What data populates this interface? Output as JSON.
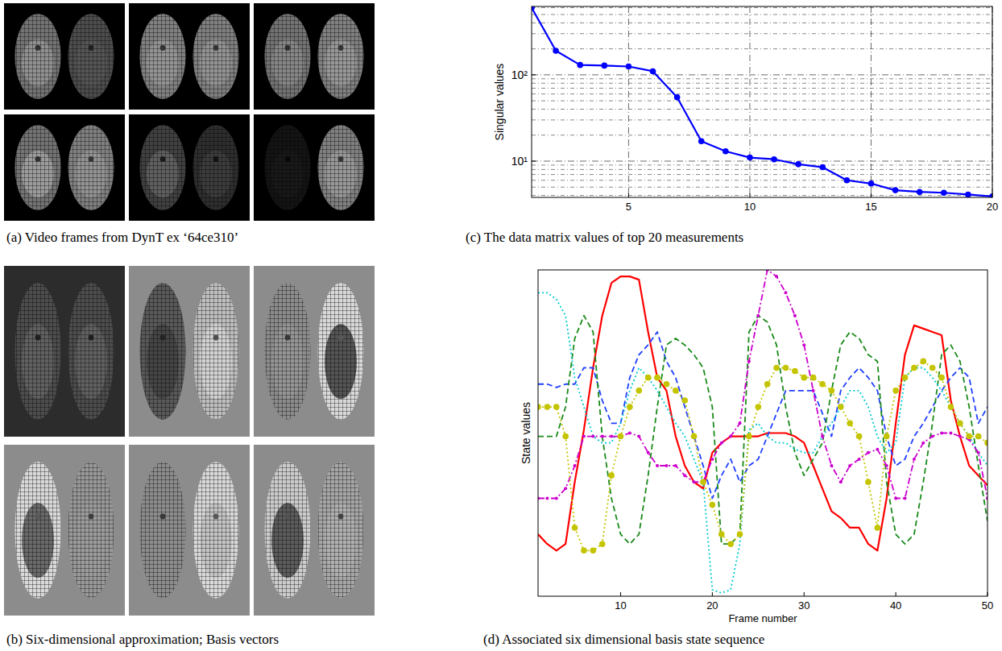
{
  "image_panels": [
    {
      "caption": "(a) Video frames from DynT ex ‘64ce310’"
    },
    {
      "caption": "(b) Six-dimensional approximation; Basis vectors"
    }
  ],
  "chart_data": [
    {
      "type": "line",
      "title": "(c) The data matrix values of top 20 measurements",
      "y_label": "Singular values",
      "log": "y",
      "grid": true,
      "color": "#0000ff",
      "marker": "circle",
      "line_style": "solid",
      "x": [
        1,
        2,
        3,
        4,
        5,
        6,
        7,
        8,
        9,
        10,
        11,
        12,
        13,
        14,
        15,
        16,
        17,
        18,
        19,
        20
      ],
      "values": [
        600,
        190,
        130,
        128,
        125,
        110,
        55,
        17,
        13,
        11,
        10.5,
        9.2,
        8.5,
        6,
        5.5,
        4.6,
        4.4,
        4.3,
        4.1,
        3.9
      ],
      "xlim": [
        1,
        20
      ],
      "xticks": [
        5,
        10,
        15,
        20
      ],
      "ylim": [
        3.8,
        620
      ],
      "yticks": [
        {
          "value": 10,
          "label": "10¹"
        },
        {
          "value": 100,
          "label": "10²"
        }
      ]
    },
    {
      "type": "line",
      "title": "(d) Associated six dimensional basis state sequence",
      "x_label": "Frame number",
      "y_label": "State values",
      "tick_labels": "x",
      "x": [
        1,
        2,
        3,
        4,
        5,
        6,
        7,
        8,
        9,
        10,
        11,
        12,
        13,
        14,
        15,
        16,
        17,
        18,
        19,
        20,
        21,
        22,
        23,
        24,
        25,
        26,
        27,
        28,
        29,
        30,
        31,
        32,
        33,
        34,
        35,
        36,
        37,
        38,
        39,
        40,
        41,
        42,
        43,
        44,
        45,
        46,
        47,
        48,
        49,
        50
      ],
      "xlim": [
        1,
        50
      ],
      "xticks": [
        10,
        20,
        30,
        40,
        50
      ],
      "ylim": [
        0,
        100
      ],
      "series": [
        {
          "color": "#ff0000",
          "line_style": "solid",
          "marker": "none",
          "values": [
            19,
            16,
            14,
            16,
            35,
            51,
            70,
            86,
            96,
            98,
            98,
            97,
            81,
            67,
            63,
            49,
            40,
            35,
            33,
            44,
            47,
            49,
            49,
            49,
            49,
            50,
            50,
            50,
            49,
            47,
            40,
            33,
            26,
            24,
            21,
            21,
            16,
            14,
            30,
            53,
            74,
            83,
            82,
            81,
            80,
            60,
            49,
            40,
            37,
            34
          ]
        },
        {
          "color": "#1f3fff",
          "line_style": "dashed",
          "marker": "none",
          "values": [
            65,
            65,
            64,
            65,
            65,
            70,
            70,
            60,
            53,
            53,
            67,
            74,
            77,
            81,
            72,
            67,
            58,
            49,
            40,
            30,
            37,
            42,
            35,
            40,
            42,
            49,
            56,
            63,
            63,
            63,
            63,
            56,
            49,
            63,
            67,
            70,
            67,
            63,
            49,
            40,
            42,
            49,
            53,
            58,
            63,
            67,
            70,
            67,
            53,
            58
          ]
        },
        {
          "color": "#1a8a1a",
          "line_style": "dashed",
          "marker": "none",
          "values": [
            49,
            49,
            49,
            58,
            79,
            86,
            81,
            49,
            30,
            19,
            16,
            19,
            37,
            58,
            77,
            79,
            77,
            74,
            70,
            58,
            16,
            16,
            19,
            81,
            86,
            84,
            77,
            58,
            44,
            37,
            42,
            47,
            63,
            77,
            81,
            79,
            74,
            72,
            35,
            19,
            16,
            19,
            35,
            53,
            74,
            77,
            72,
            58,
            40,
            23
          ]
        },
        {
          "color": "#00c8d0",
          "line_style": "dotted",
          "marker": "none",
          "values": [
            93,
            93,
            91,
            86,
            67,
            58,
            49,
            47,
            47,
            53,
            63,
            70,
            67,
            63,
            58,
            53,
            49,
            42,
            35,
            2,
            1,
            2,
            16,
            51,
            53,
            49,
            47,
            47,
            45,
            44,
            44,
            49,
            53,
            58,
            63,
            63,
            58,
            49,
            44,
            47,
            67,
            70,
            70,
            67,
            63,
            58,
            53,
            49,
            44,
            40
          ]
        },
        {
          "color": "#cc00cc",
          "line_style": "dashdot",
          "marker": "point",
          "values": [
            30,
            30,
            30,
            33,
            40,
            49,
            49,
            49,
            49,
            49,
            50,
            49,
            44,
            40,
            40,
            40,
            37,
            35,
            35,
            42,
            47,
            49,
            53,
            72,
            86,
            100,
            98,
            93,
            86,
            77,
            63,
            49,
            40,
            35,
            40,
            42,
            44,
            45,
            40,
            30,
            30,
            42,
            47,
            49,
            50,
            50,
            49,
            48,
            44,
            30
          ]
        },
        {
          "color": "#c4c400",
          "line_style": "dotted",
          "marker": "circle",
          "values": [
            58,
            58,
            58,
            49,
            21,
            14,
            14,
            16,
            37,
            49,
            58,
            63,
            67,
            67,
            65,
            63,
            60,
            49,
            35,
            28,
            19,
            16,
            19,
            49,
            58,
            65,
            70,
            70,
            69,
            67,
            67,
            65,
            63,
            58,
            53,
            49,
            35,
            21,
            49,
            63,
            67,
            70,
            72,
            70,
            67,
            58,
            53,
            49,
            49,
            47
          ]
        }
      ]
    }
  ]
}
